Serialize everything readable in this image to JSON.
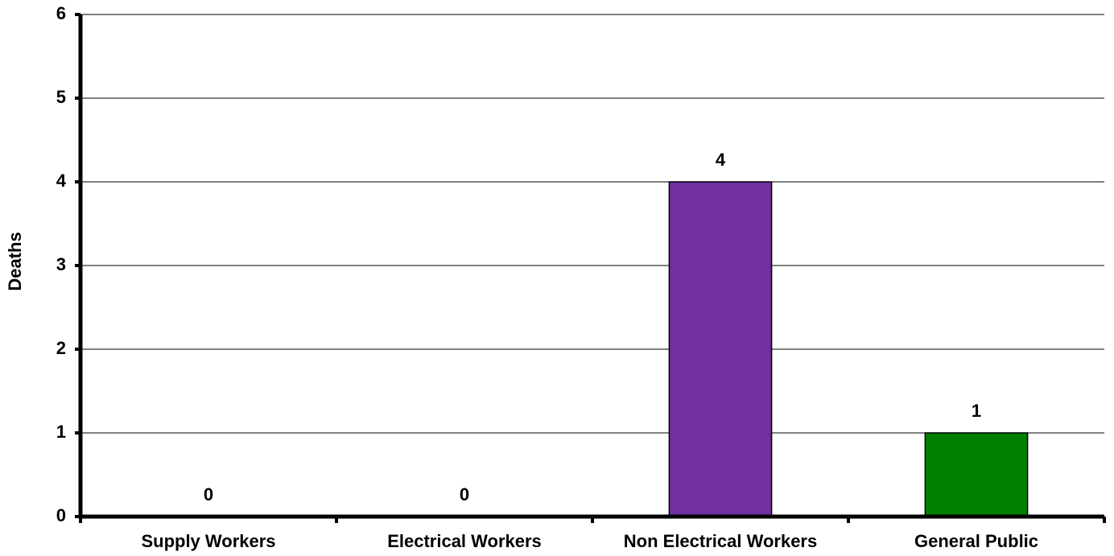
{
  "chart_data": {
    "type": "bar",
    "y_label": "Deaths",
    "categories": [
      "Supply Workers",
      "Electrical Workers",
      "Non Electrical Workers",
      "General Public"
    ],
    "values": [
      0,
      0,
      4,
      1
    ],
    "colors": [
      null,
      null,
      "#7030a0",
      "#008000"
    ],
    "ylim": [
      0,
      6
    ],
    "yticks": [
      0,
      1,
      2,
      3,
      4,
      5,
      6
    ],
    "grid": true
  }
}
